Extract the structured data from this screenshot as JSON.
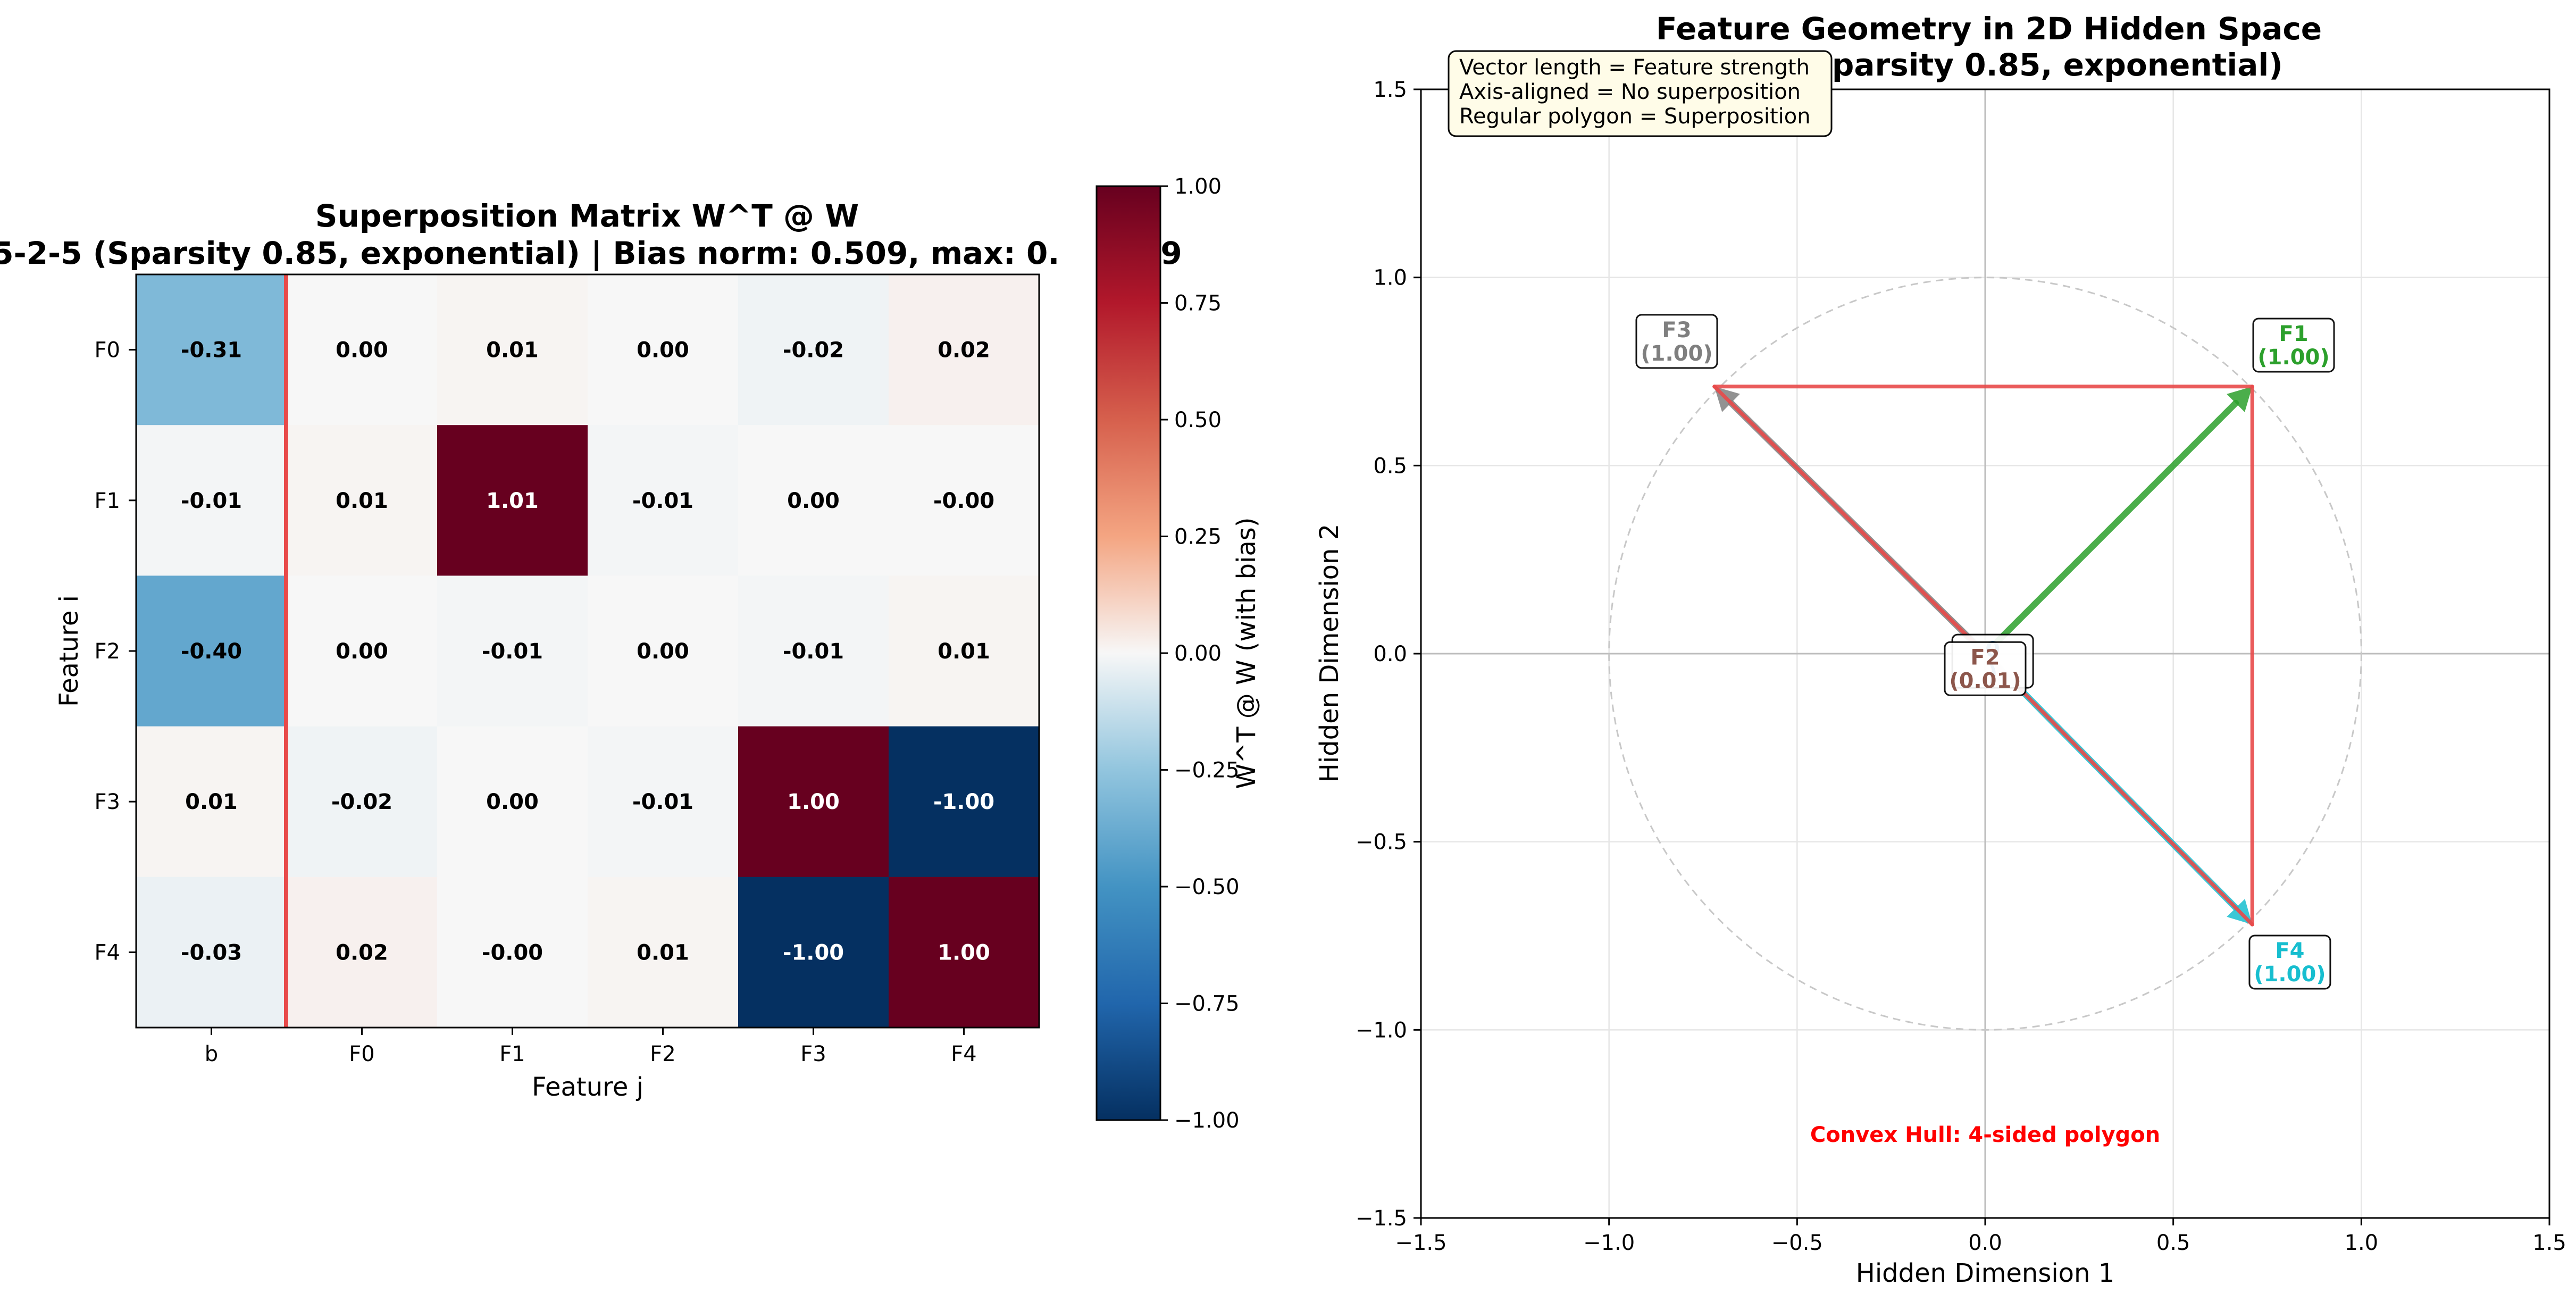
{
  "heatmap": {
    "title_line1": "Superposition Matrix W^T @ W",
    "title_line2": "5-2-5 (Sparsity 0.85, exponential) | Bias norm: 0.509, max: 0.",
    "title_line2_tail": "9",
    "xlabel": "Feature j",
    "ylabel": "Feature i",
    "col_labels": [
      "b",
      "F0",
      "F1",
      "F2",
      "F3",
      "F4"
    ],
    "row_labels": [
      "F0",
      "F1",
      "F2",
      "F3",
      "F4"
    ],
    "colorbar_label": "W^T @ W (with bias)",
    "colorbar_ticks": [
      "1.00",
      "0.75",
      "0.50",
      "0.25",
      "0.00",
      "−0.25",
      "−0.50",
      "−0.75",
      "−1.00"
    ],
    "colorbar_range": [
      -1.0,
      1.0
    ],
    "separator_color": "#e84a4a"
  },
  "geometry": {
    "title_line1": "Feature Geometry in 2D Hidden Space",
    "title_line2": "5-2-5 (Sparsity 0.85, exponential)",
    "xlabel": "Hidden Dimension 1",
    "ylabel": "Hidden Dimension 2",
    "x_ticks": [
      "−1.5",
      "−1.0",
      "−0.5",
      "0.0",
      "0.5",
      "1.0",
      "1.5"
    ],
    "y_ticks": [
      "1.5",
      "1.0",
      "0.5",
      "0.0",
      "−0.5",
      "−1.0",
      "−1.5"
    ],
    "note_lines": [
      "Vector length = Feature strength",
      "Axis-aligned = No superposition",
      "Regular polygon = Superposition"
    ],
    "hull_text": "Convex Hull: 4-sided polygon",
    "hull_color": "#e84a4a",
    "hull_text_color": "#ff0000",
    "vector_labels": [
      {
        "name": "F3",
        "value": "(1.00)",
        "color": "#7f7f7f"
      },
      {
        "name": "F1",
        "value": "(1.00)",
        "color": "#2ca02c"
      },
      {
        "name": "F2",
        "value": "(0.01)",
        "color": "#8c564b"
      },
      {
        "name": "F4",
        "value": "(1.00)",
        "color": "#17becf"
      }
    ],
    "hidden_label": {
      "text": "0",
      "value": ")",
      "color": "#1f77b4"
    }
  },
  "chart_data": [
    {
      "type": "heatmap",
      "title": "Superposition Matrix W^T @ W\n5-2-5 (Sparsity 0.85, exponential) | Bias norm: 0.509, max: 0.?9",
      "xlabel": "Feature j",
      "ylabel": "Feature i",
      "x": [
        "b",
        "F0",
        "F1",
        "F2",
        "F3",
        "F4"
      ],
      "y": [
        "F0",
        "F1",
        "F2",
        "F3",
        "F4"
      ],
      "values": [
        [
          -0.31,
          0.0,
          0.01,
          0.0,
          -0.02,
          0.02
        ],
        [
          -0.01,
          0.01,
          1.01,
          -0.01,
          0.0,
          -0.0
        ],
        [
          -0.4,
          0.0,
          -0.01,
          0.0,
          -0.01,
          0.01
        ],
        [
          0.01,
          -0.02,
          0.0,
          -0.01,
          1.0,
          -1.0
        ],
        [
          -0.03,
          0.02,
          -0.0,
          0.01,
          -1.0,
          1.0
        ]
      ],
      "value_labels": [
        [
          "-0.31",
          "0.00",
          "0.01",
          "0.00",
          "-0.02",
          "0.02"
        ],
        [
          "-0.01",
          "0.01",
          "1.01",
          "-0.01",
          "0.00",
          "-0.00"
        ],
        [
          "-0.40",
          "0.00",
          "-0.01",
          "0.00",
          "-0.01",
          "0.01"
        ],
        [
          "0.01",
          "-0.02",
          "0.00",
          "-0.01",
          "1.00",
          "-1.00"
        ],
        [
          "-0.03",
          "0.02",
          "-0.00",
          "0.01",
          "-1.00",
          "1.00"
        ]
      ],
      "colormap": "RdBu_r",
      "vmin": -1.0,
      "vmax": 1.0,
      "colorbar_label": "W^T @ W (with bias)"
    },
    {
      "type": "scatter",
      "subtype": "vectors",
      "title": "Feature Geometry in 2D Hidden Space\n5-2-5 (Sparsity 0.85, exponential)",
      "xlabel": "Hidden Dimension 1",
      "ylabel": "Hidden Dimension 2",
      "xlim": [
        -1.5,
        1.5
      ],
      "ylim": [
        -1.5,
        1.5
      ],
      "grid": true,
      "unit_circle": true,
      "vectors": [
        {
          "name": "F0",
          "x": 0.0,
          "y": 0.0,
          "color": "#1f77b4"
        },
        {
          "name": "F1",
          "x": 0.71,
          "y": 0.71,
          "color": "#2ca02c"
        },
        {
          "name": "F2",
          "x": 0.0,
          "y": 0.0,
          "color": "#8c564b"
        },
        {
          "name": "F3",
          "x": -0.72,
          "y": 0.71,
          "color": "#7f7f7f"
        },
        {
          "name": "F4",
          "x": 0.71,
          "y": -0.72,
          "color": "#17becf"
        }
      ],
      "convex_hull": [
        [
          -0.72,
          0.71
        ],
        [
          0.71,
          0.71
        ],
        [
          0.71,
          -0.72
        ],
        [
          0.0,
          0.0
        ]
      ],
      "annotation": "Convex Hull: 4-sided polygon"
    }
  ]
}
